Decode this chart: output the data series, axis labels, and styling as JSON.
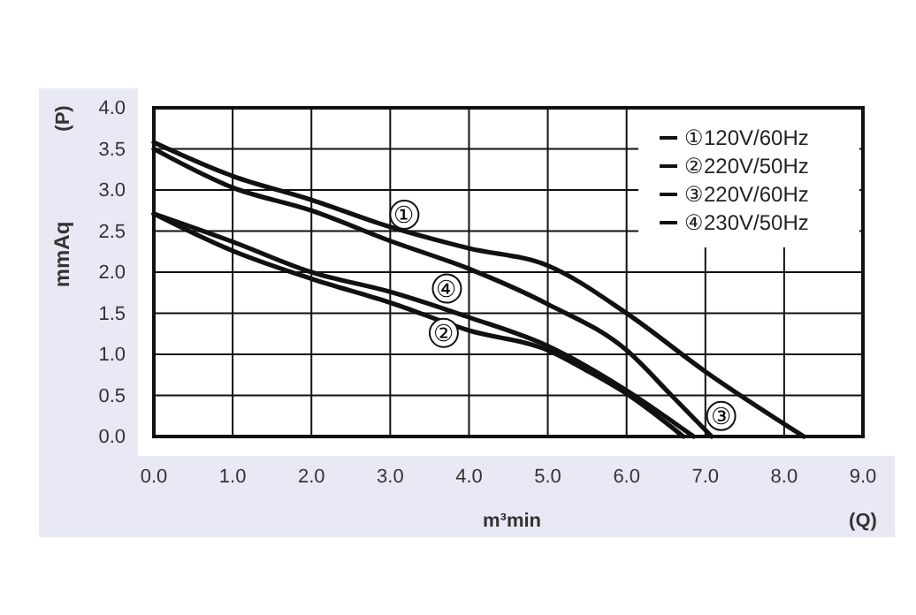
{
  "chart_data": {
    "type": "line",
    "ylabel": "mmAq",
    "xlabel": "m³min",
    "annotations": [
      "(P)",
      "(Q)",
      {
        "text": "①",
        "x": 3.18,
        "y": 2.7
      },
      {
        "text": "④",
        "x": 3.72,
        "y": 1.8
      },
      {
        "text": "②",
        "x": 3.68,
        "y": 1.26
      },
      {
        "text": "③",
        "x": 7.2,
        "y": 0.25
      }
    ],
    "xlim": [
      0,
      9
    ],
    "ylim": [
      0,
      4
    ],
    "xticks": [
      {
        "value": 0,
        "label": "0.0"
      },
      {
        "value": 1,
        "label": "1.0"
      },
      {
        "value": 2,
        "label": "2.0"
      },
      {
        "value": 3,
        "label": "3.0"
      },
      {
        "value": 4,
        "label": "4.0"
      },
      {
        "value": 5,
        "label": "5.0"
      },
      {
        "value": 6,
        "label": "6.0"
      },
      {
        "value": 7,
        "label": "7.0"
      },
      {
        "value": 8,
        "label": "8.0"
      },
      {
        "value": 9,
        "label": "9.0"
      }
    ],
    "yticks": [
      {
        "value": 0,
        "label": "0.0"
      },
      {
        "value": 0.5,
        "label": "0.5"
      },
      {
        "value": 1,
        "label": "1.0"
      },
      {
        "value": 1.5,
        "label": "1.5"
      },
      {
        "value": 2,
        "label": "2.0"
      },
      {
        "value": 2.5,
        "label": "2.5"
      },
      {
        "value": 3,
        "label": "3.0"
      },
      {
        "value": 3.5,
        "label": "3.5"
      },
      {
        "value": 4,
        "label": "4.0"
      }
    ],
    "grid": true,
    "legend": "top right",
    "marker": "none",
    "line_style": "solid",
    "series": [
      {
        "name": "①120V/60Hz",
        "color": "#111111",
        "x": [
          0,
          1,
          2,
          3,
          4,
          5,
          6,
          7,
          8.25
        ],
        "values": [
          3.58,
          3.17,
          2.88,
          2.55,
          2.29,
          2.08,
          1.5,
          0.79,
          0
        ]
      },
      {
        "name": "②220V/50Hz",
        "color": "#111111",
        "x": [
          0,
          1,
          2,
          3,
          4,
          5,
          5.5,
          6,
          6.72
        ],
        "values": [
          2.71,
          2.26,
          1.92,
          1.63,
          1.29,
          1.05,
          0.8,
          0.52,
          0
        ]
      },
      {
        "name": "③220V/60Hz",
        "color": "#111111",
        "x": [
          0,
          1,
          2,
          3,
          4,
          5,
          6,
          6.57,
          7.08
        ],
        "values": [
          3.5,
          3.03,
          2.75,
          2.38,
          2.04,
          1.61,
          1.05,
          0.5,
          0
        ]
      },
      {
        "name": "④230V/50Hz",
        "color": "#111111",
        "x": [
          0,
          1,
          2,
          3,
          4,
          5,
          5.5,
          6,
          6.85
        ],
        "values": [
          2.71,
          2.37,
          2.0,
          1.76,
          1.45,
          1.1,
          0.85,
          0.56,
          0
        ]
      }
    ]
  }
}
